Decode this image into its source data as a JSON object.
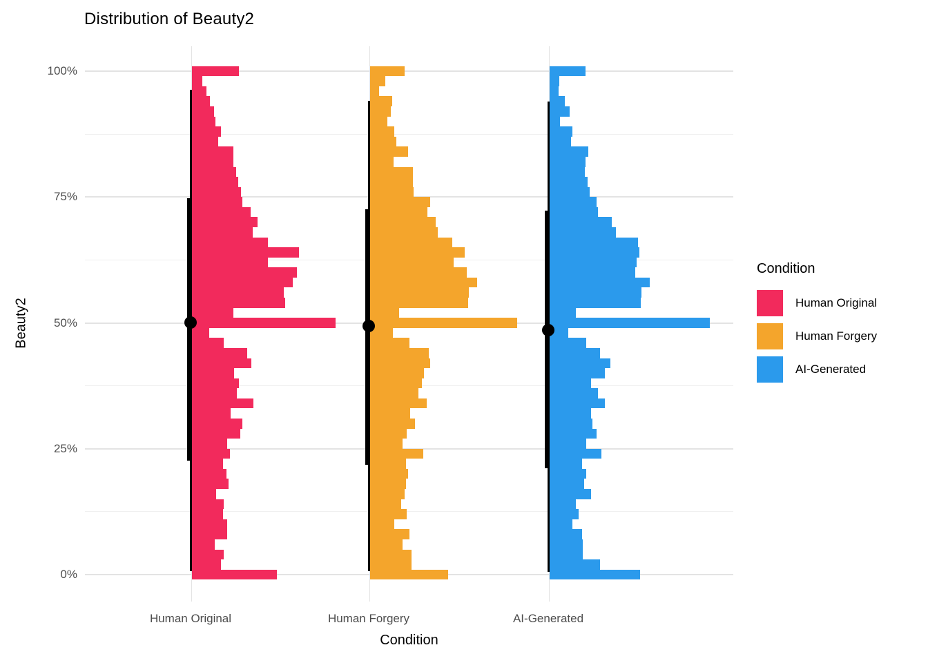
{
  "title": "Distribution of Beauty2",
  "y_axis": {
    "title": "Beauty2"
  },
  "x_axis": {
    "title": "Condition",
    "tick_labels": [
      "Human Original",
      "Human Forgery",
      "AI-Generated"
    ]
  },
  "legend": {
    "title": "Condition",
    "position": "right",
    "items": [
      {
        "label": "Human Original",
        "color": "#F22A5C"
      },
      {
        "label": "Human Forgery",
        "color": "#F4A52C"
      },
      {
        "label": "AI-Generated",
        "color": "#2B9AEC"
      }
    ]
  },
  "chart_data": {
    "type": "bar",
    "subtype": "per-category half-histograms (horizontal bars stacked vertically) with median dot and quantile interval line",
    "title": "Distribution of Beauty2",
    "xlabel": "Condition",
    "ylabel": "Beauty2",
    "ylim": [
      0,
      100
    ],
    "grid": true,
    "y_ticks": [
      {
        "value": 0,
        "label": "0%"
      },
      {
        "value": 25,
        "label": "25%"
      },
      {
        "value": 50,
        "label": "50%"
      },
      {
        "value": 75,
        "label": "75%"
      },
      {
        "value": 100,
        "label": "100%"
      }
    ],
    "y_minor_gridlines": [
      12.5,
      37.5,
      62.5,
      87.5
    ],
    "categories": [
      "Human Original",
      "Human Forgery",
      "AI-Generated"
    ],
    "bin_width": 2,
    "bin_centers": [
      0,
      2,
      4,
      6,
      8,
      10,
      12,
      14,
      16,
      18,
      20,
      22,
      24,
      26,
      28,
      30,
      32,
      34,
      36,
      38,
      40,
      42,
      44,
      46,
      48,
      50,
      52,
      54,
      56,
      58,
      60,
      62,
      64,
      66,
      68,
      70,
      72,
      74,
      76,
      78,
      80,
      82,
      84,
      86,
      88,
      90,
      92,
      94,
      96,
      98,
      100
    ],
    "frequency_units": "relative bar length in px (max 232)",
    "series": [
      {
        "name": "Human Original",
        "color": "#F22A5C",
        "bin_lengths": [
          123,
          42,
          46,
          33,
          51,
          51,
          45,
          46,
          35,
          53,
          50,
          45,
          55,
          51,
          70,
          73,
          56,
          89,
          65,
          68,
          61,
          86,
          80,
          46,
          25,
          208,
          60,
          135,
          133,
          146,
          152,
          110,
          155,
          110,
          88,
          95,
          85,
          73,
          71,
          67,
          64,
          60,
          60,
          38,
          42,
          34,
          32,
          26,
          21,
          15,
          68
        ],
        "summary": {
          "median": 50.1,
          "q25": 22.6,
          "q75": 74.8,
          "whisker_low": 0.7,
          "whisker_high": 96.3
        }
      },
      {
        "name": "Human Forgery",
        "color": "#F4A52C",
        "bin_lengths": [
          113,
          60,
          60,
          47,
          57,
          35,
          53,
          45,
          50,
          52,
          55,
          52,
          77,
          47,
          53,
          65,
          58,
          82,
          70,
          75,
          78,
          87,
          85,
          57,
          33,
          213,
          42,
          142,
          143,
          155,
          140,
          121,
          137,
          119,
          98,
          95,
          83,
          87,
          63,
          62,
          62,
          34,
          55,
          38,
          35,
          25,
          30,
          32,
          13,
          22,
          50
        ],
        "summary": {
          "median": 49.4,
          "q25": 21.8,
          "q75": 72.6,
          "whisker_low": 0.7,
          "whisker_high": 94.1
        }
      },
      {
        "name": "AI-Generated",
        "color": "#2B9AEC",
        "bin_lengths": [
          131,
          73,
          48,
          48,
          47,
          33,
          42,
          38,
          60,
          50,
          53,
          47,
          75,
          53,
          68,
          62,
          60,
          80,
          70,
          60,
          80,
          88,
          73,
          53,
          27,
          232,
          38,
          132,
          133,
          145,
          124,
          126,
          130,
          128,
          96,
          90,
          70,
          68,
          58,
          55,
          51,
          52,
          56,
          31,
          33,
          15,
          29,
          22,
          13,
          14,
          52
        ],
        "summary": {
          "median": 48.5,
          "q25": 21.1,
          "q75": 72.3,
          "whisker_low": 0.5,
          "whisker_high": 94.0
        }
      }
    ]
  }
}
